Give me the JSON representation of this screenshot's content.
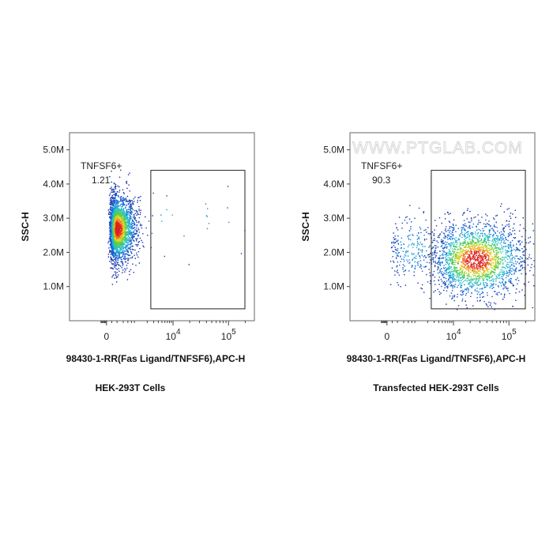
{
  "watermark": "WWW.PTGLAB.COM",
  "chart_data": [
    {
      "type": "scatter",
      "title": "HEK-293T Cells",
      "xlabel": "98430-1-RR(Fas Ligand/TNFSF6),APC-H",
      "ylabel": "SSC-H",
      "x_scale": "biexponential",
      "ylim": [
        0,
        5500000
      ],
      "y_ticks": [
        {
          "value": 1000000,
          "label": "1.0M"
        },
        {
          "value": 2000000,
          "label": "2.0M"
        },
        {
          "value": 3000000,
          "label": "3.0M"
        },
        {
          "value": 4000000,
          "label": "4.0M"
        },
        {
          "value": 5000000,
          "label": "5.0M"
        }
      ],
      "x_ticks": [
        {
          "value": 0,
          "label": "0",
          "exp": ""
        },
        {
          "value": 10000,
          "label": "10",
          "exp": "4"
        },
        {
          "value": 100000,
          "label": "10",
          "exp": "5"
        }
      ],
      "gate": {
        "name": "TNFSF6+",
        "percent": "1.21",
        "x_range": [
          2500,
          300000
        ],
        "y_range": [
          350000,
          4400000
        ]
      },
      "populations": [
        {
          "x_center": 300,
          "x_spread": 0.25,
          "y_center": 2700000,
          "y_spread": 480000,
          "fraction": 0.99
        },
        {
          "x_center": 15000,
          "x_spread": 0.9,
          "y_center": 2900000,
          "y_spread": 600000,
          "fraction": 0.01
        }
      ]
    },
    {
      "type": "scatter",
      "title": "Transfected HEK-293T Cells",
      "xlabel": "98430-1-RR(Fas Ligand/TNFSF6),APC-H",
      "ylabel": "SSC-H",
      "x_scale": "biexponential",
      "ylim": [
        0,
        5500000
      ],
      "y_ticks": [
        {
          "value": 1000000,
          "label": "1.0M"
        },
        {
          "value": 2000000,
          "label": "2.0M"
        },
        {
          "value": 3000000,
          "label": "3.0M"
        },
        {
          "value": 4000000,
          "label": "4.0M"
        },
        {
          "value": 5000000,
          "label": "5.0M"
        }
      ],
      "x_ticks": [
        {
          "value": 0,
          "label": "0",
          "exp": ""
        },
        {
          "value": 10000,
          "label": "10",
          "exp": "4"
        },
        {
          "value": 100000,
          "label": "10",
          "exp": "5"
        }
      ],
      "gate": {
        "name": "TNFSF6+",
        "percent": "90.3",
        "x_range": [
          2500,
          300000
        ],
        "y_range": [
          350000,
          4400000
        ]
      },
      "populations": [
        {
          "x_center": 25000,
          "x_spread": 0.45,
          "y_center": 1800000,
          "y_spread": 550000,
          "fraction": 0.9
        },
        {
          "x_center": 800,
          "x_spread": 0.4,
          "y_center": 2100000,
          "y_spread": 500000,
          "fraction": 0.1
        }
      ]
    }
  ]
}
